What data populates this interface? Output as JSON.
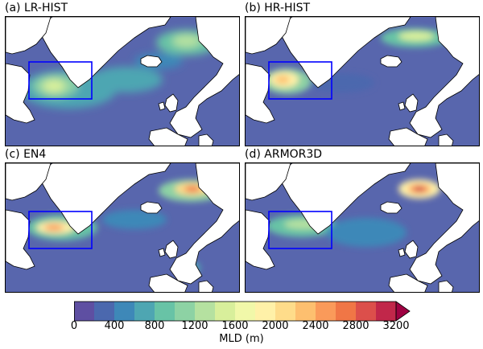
{
  "panels": [
    {
      "id": "a",
      "title": "(a) LR-HIST"
    },
    {
      "id": "b",
      "title": "(b) HR-HIST"
    },
    {
      "id": "c",
      "title": "(c) EN4"
    },
    {
      "id": "d",
      "title": "(d) ARMOR3D"
    }
  ],
  "colorbar": {
    "label": "MLD (m)",
    "ticks": [
      "0",
      "400",
      "800",
      "1200",
      "1600",
      "2000",
      "2400",
      "2800",
      "3200"
    ],
    "levels": 16,
    "colors": [
      "#5e4fa2",
      "#4b68ae",
      "#3e88b8",
      "#4ea6b2",
      "#68c3a6",
      "#8dd2a4",
      "#b5e1a0",
      "#d8ef9b",
      "#f1f8a9",
      "#fff1a8",
      "#fedc8a",
      "#fdbf6f",
      "#fa9a5a",
      "#f07646",
      "#dc4f4b",
      "#c1274a",
      "#9e0142"
    ],
    "extend": "max"
  },
  "colors": {
    "ocean": "#5866ad",
    "land": "#ffffff",
    "box": "#0000ff",
    "coast": "#000000"
  }
}
